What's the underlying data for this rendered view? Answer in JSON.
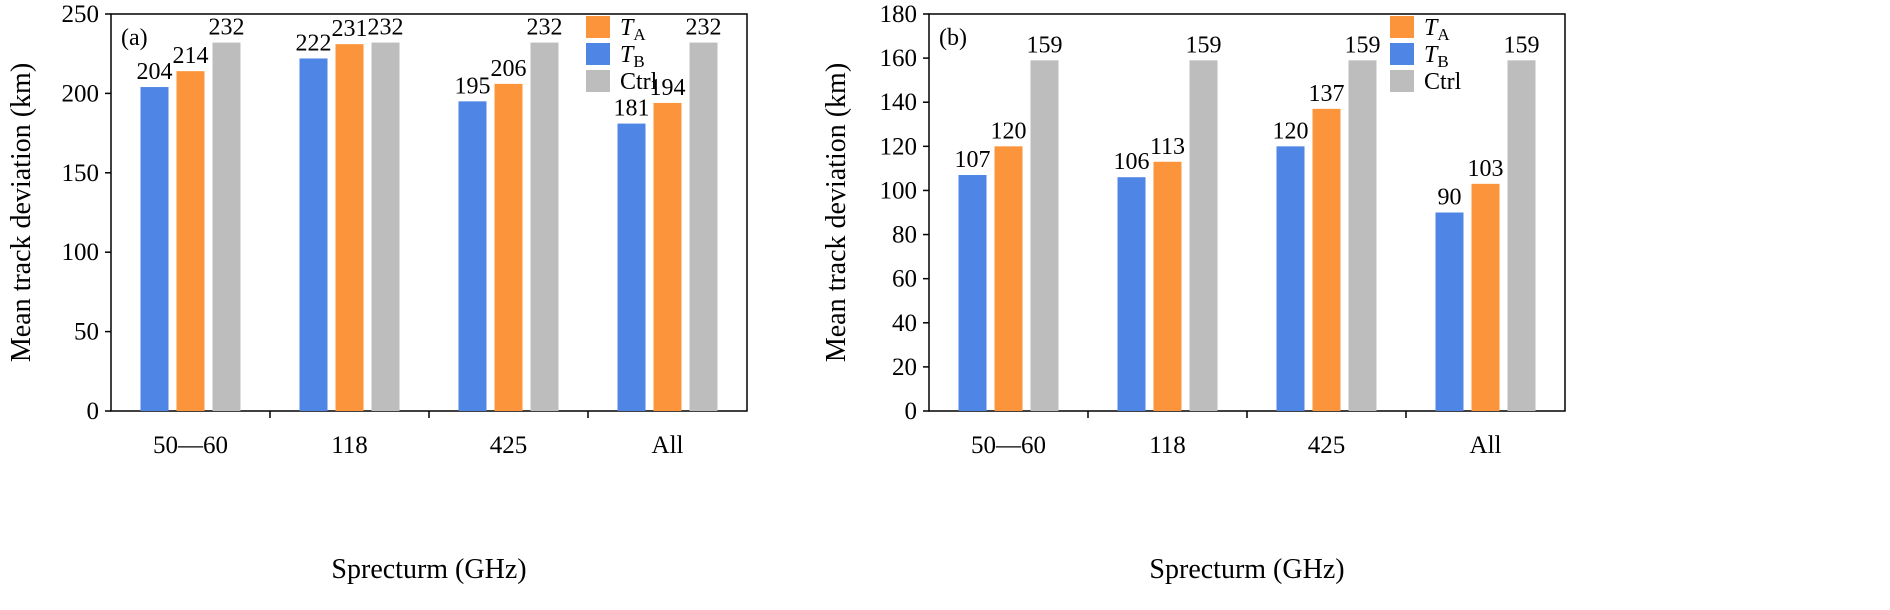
{
  "colors": {
    "TB": "#4f86e5",
    "TA": "#fb943a",
    "Ctrl": "#bdbdbd",
    "axis": "#000000"
  },
  "chart_data": [
    {
      "type": "bar",
      "panel_label": "(a)",
      "categories": [
        "50—60",
        "118",
        "425",
        "All"
      ],
      "xlabel": "Sprecturm (GHz)",
      "ylabel": "Mean track deviation (km)",
      "ylim": [
        0,
        250
      ],
      "yticks": [
        0,
        50,
        100,
        150,
        200,
        250
      ],
      "legend_position": "top-right",
      "series": [
        {
          "key": "TB",
          "name_main": "T",
          "name_sub": "B",
          "values": [
            204,
            222,
            195,
            181
          ]
        },
        {
          "key": "TA",
          "name_main": "T",
          "name_sub": "A",
          "values": [
            214,
            231,
            206,
            194
          ]
        },
        {
          "key": "Ctrl",
          "name_main": "Ctrl",
          "name_sub": "",
          "values": [
            232,
            232,
            232,
            232
          ]
        }
      ]
    },
    {
      "type": "bar",
      "panel_label": "(b)",
      "categories": [
        "50—60",
        "118",
        "425",
        "All"
      ],
      "xlabel": "Sprecturm (GHz)",
      "ylabel": "Mean track deviation (km)",
      "ylim": [
        0,
        180
      ],
      "yticks": [
        0,
        20,
        40,
        60,
        80,
        100,
        120,
        140,
        160,
        180
      ],
      "legend_position": "top-right",
      "series": [
        {
          "key": "TB",
          "name_main": "T",
          "name_sub": "B",
          "values": [
            107,
            106,
            120,
            90
          ]
        },
        {
          "key": "TA",
          "name_main": "T",
          "name_sub": "A",
          "values": [
            120,
            113,
            137,
            103
          ]
        },
        {
          "key": "Ctrl",
          "name_main": "Ctrl",
          "name_sub": "",
          "values": [
            159,
            159,
            159,
            159
          ]
        }
      ]
    }
  ]
}
